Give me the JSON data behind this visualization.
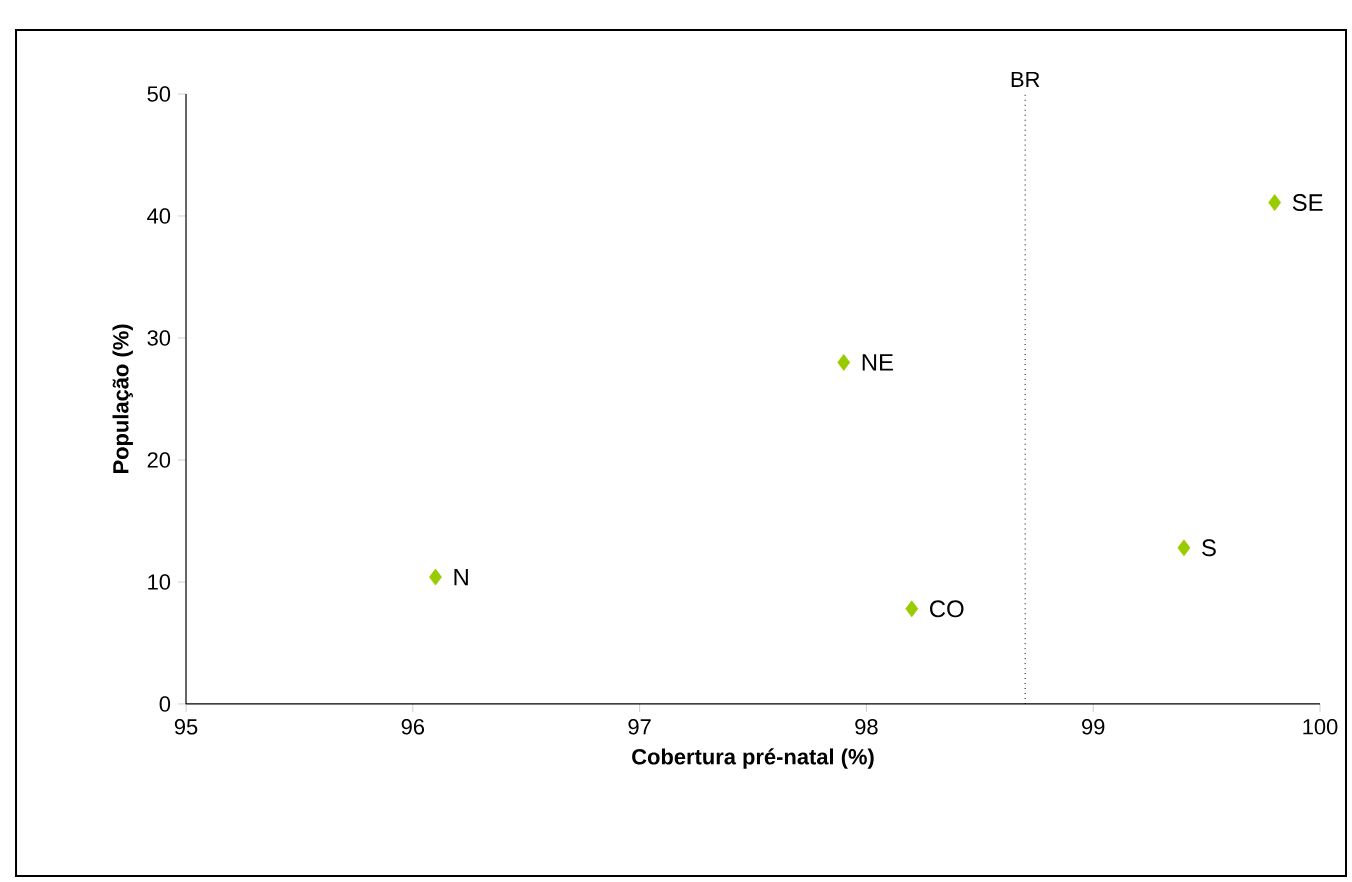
{
  "chart_data": {
    "type": "scatter",
    "xlabel": "Cobertura pré-natal (%)",
    "ylabel": "População (%)",
    "xlim": [
      95,
      100
    ],
    "xticks": [
      95,
      96,
      97,
      98,
      99,
      100
    ],
    "ylim": [
      0,
      50
    ],
    "yticks": [
      0,
      10,
      20,
      30,
      40,
      50
    ],
    "marker": "diamond",
    "series": [
      {
        "color": "#99cc00",
        "x": [
          96.1,
          97.9,
          98.2,
          99.4,
          99.8
        ],
        "values": [
          10.4,
          28.0,
          7.8,
          12.8,
          41.1
        ]
      }
    ],
    "ref_lines": [
      {
        "axis": "x",
        "value": 98.7,
        "label": "BR",
        "line_style": "dotted"
      }
    ],
    "annotations": [
      {
        "text": "N",
        "x": 96.1,
        "y": 10.4
      },
      {
        "text": "NE",
        "x": 97.9,
        "y": 28.0
      },
      {
        "text": "CO",
        "x": 98.2,
        "y": 7.8
      },
      {
        "text": "S",
        "x": 99.4,
        "y": 12.8
      },
      {
        "text": "SE",
        "x": 99.8,
        "y": 41.1
      }
    ]
  }
}
